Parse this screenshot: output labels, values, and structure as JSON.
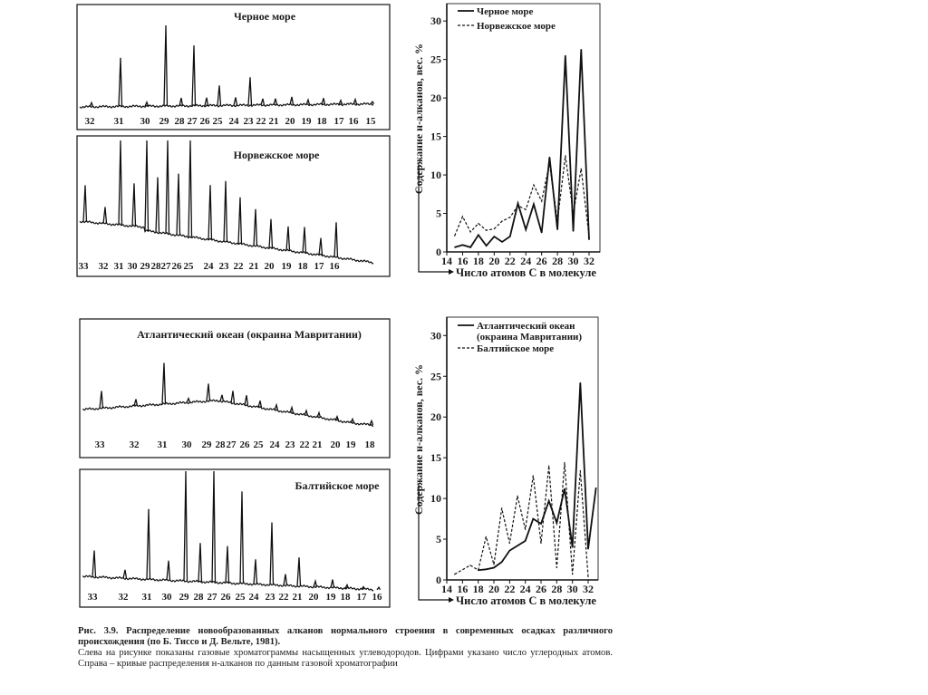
{
  "caption": {
    "title": "Рис. 3.9. Распределение новообразованных алканов нормального строения в современных осадках различного происхождения (по Б. Тиссо и Д. Вельте, 1981).",
    "text": "Слева на рисунке показаны газовые хроматограммы насыщенных углеводородов. Цифрами указано число углеродных атомов. Справа – кривые распределения н-алканов по данным газовой хроматографии"
  },
  "chart_data": [
    {
      "type": "chromatogram",
      "title": "Черное море",
      "peak_labels": [
        "32",
        "31",
        "30",
        "29",
        "28",
        "27",
        "26",
        "25",
        "24",
        "23",
        "22",
        "21",
        "20",
        "19",
        "18",
        "17",
        "16",
        "15"
      ],
      "relative_intensity": [
        0.05,
        0.6,
        0.05,
        1.0,
        0.1,
        0.75,
        0.1,
        0.25,
        0.1,
        0.35,
        0.08,
        0.08,
        0.1,
        0.06,
        0.08,
        0.05,
        0.06,
        0.03
      ]
    },
    {
      "type": "chromatogram",
      "title": "Норвежское море",
      "peak_labels": [
        "33",
        "32",
        "31",
        "30",
        "29",
        "28",
        "27",
        "26",
        "25",
        "24",
        "23",
        "22",
        "21",
        "20",
        "19",
        "18",
        "17",
        "16"
      ],
      "relative_intensity": [
        0.45,
        0.2,
        1.0,
        0.5,
        1.0,
        0.6,
        1.0,
        0.65,
        1.0,
        0.55,
        0.6,
        0.45,
        0.35,
        0.27,
        0.22,
        0.23,
        0.15,
        0.3
      ]
    },
    {
      "type": "chromatogram",
      "title": "Атлантический океан (окраина Мавритании)",
      "peak_labels": [
        "33",
        "32",
        "31",
        "30",
        "29",
        "28",
        "27",
        "26",
        "25",
        "24",
        "23",
        "22",
        "21",
        "20",
        "19",
        "18"
      ],
      "relative_intensity": [
        0.2,
        0.08,
        0.5,
        0.05,
        0.22,
        0.08,
        0.15,
        0.12,
        0.08,
        0.06,
        0.06,
        0.05,
        0.05,
        0.04,
        0.04,
        0.04
      ]
    },
    {
      "type": "chromatogram",
      "title": "Балтийское море",
      "peak_labels": [
        "33",
        "32",
        "31",
        "30",
        "29",
        "28",
        "27",
        "26",
        "25",
        "24",
        "23",
        "22",
        "21",
        "20",
        "19",
        "18",
        "17",
        "16"
      ],
      "relative_intensity": [
        0.25,
        0.08,
        0.65,
        0.18,
        1.0,
        0.35,
        1.0,
        0.33,
        0.82,
        0.22,
        0.55,
        0.1,
        0.25,
        0.05,
        0.07,
        0.03,
        0.02,
        0.02
      ]
    },
    {
      "type": "line",
      "xlabel": "Число атомов С в молекуле",
      "ylabel": "Содержание н-алканов, вес. %",
      "xlim": [
        14,
        32
      ],
      "ylim": [
        0,
        30
      ],
      "xticks": [
        "14",
        "16",
        "18",
        "20",
        "22",
        "24",
        "26",
        "28",
        "30",
        "32"
      ],
      "yticks": [
        "0",
        "5",
        "10",
        "15",
        "20",
        "25",
        "30"
      ],
      "legend": "top-left",
      "series": [
        {
          "name": "Черное море",
          "style": "solid",
          "x": [
            15,
            16,
            17,
            18,
            19,
            20,
            21,
            22,
            23,
            24,
            25,
            26,
            27,
            28,
            29,
            30,
            31,
            32
          ],
          "y": [
            0.6,
            0.9,
            0.6,
            2.2,
            0.8,
            2.0,
            1.3,
            2.0,
            6.3,
            2.9,
            6.2,
            2.5,
            12.3,
            2.9,
            25.5,
            2.7,
            26.3,
            1.6
          ]
        },
        {
          "name": "Норвежское море",
          "style": "dashed",
          "x": [
            15,
            16,
            17,
            18,
            19,
            20,
            21,
            22,
            23,
            24,
            25,
            26,
            27,
            28,
            29,
            30,
            31,
            32
          ],
          "y": [
            2.1,
            4.6,
            2.6,
            3.7,
            2.8,
            3.0,
            4.0,
            4.5,
            6.0,
            5.5,
            8.7,
            6.6,
            11.5,
            4.0,
            12.5,
            5.0,
            10.8,
            2.0
          ]
        }
      ]
    },
    {
      "type": "line",
      "xlabel": "Число атомов С в молекуле",
      "ylabel": "Содержание н-алканов, вес. %",
      "xlim": [
        14,
        33
      ],
      "ylim": [
        0,
        30
      ],
      "xticks": [
        "14",
        "16",
        "18",
        "20",
        "22",
        "24",
        "26",
        "28",
        "30",
        "32"
      ],
      "yticks": [
        "0",
        "5",
        "10",
        "15",
        "20",
        "25",
        "30"
      ],
      "legend": "top-left",
      "series": [
        {
          "name": "Атлантический океан (окраина Мавритании)",
          "style": "solid",
          "x": [
            18,
            19,
            20,
            21,
            22,
            23,
            24,
            25,
            26,
            27,
            28,
            29,
            30,
            31,
            32,
            33
          ],
          "y": [
            1.2,
            1.3,
            1.5,
            2.2,
            3.6,
            4.2,
            4.8,
            7.5,
            6.9,
            9.7,
            7.0,
            11.2,
            4.0,
            24.2,
            3.8,
            11.3
          ]
        },
        {
          "name": "Балтийское море",
          "style": "dashed",
          "x": [
            15,
            17,
            18,
            19,
            20,
            21,
            22,
            23,
            24,
            25,
            26,
            27,
            28,
            29,
            30,
            31,
            32
          ],
          "y": [
            0.7,
            1.8,
            1.2,
            5.3,
            1.9,
            8.8,
            4.5,
            10.3,
            6.2,
            12.8,
            4.5,
            14.0,
            1.5,
            14.4,
            0.7,
            13.4,
            0.4
          ]
        }
      ]
    }
  ]
}
